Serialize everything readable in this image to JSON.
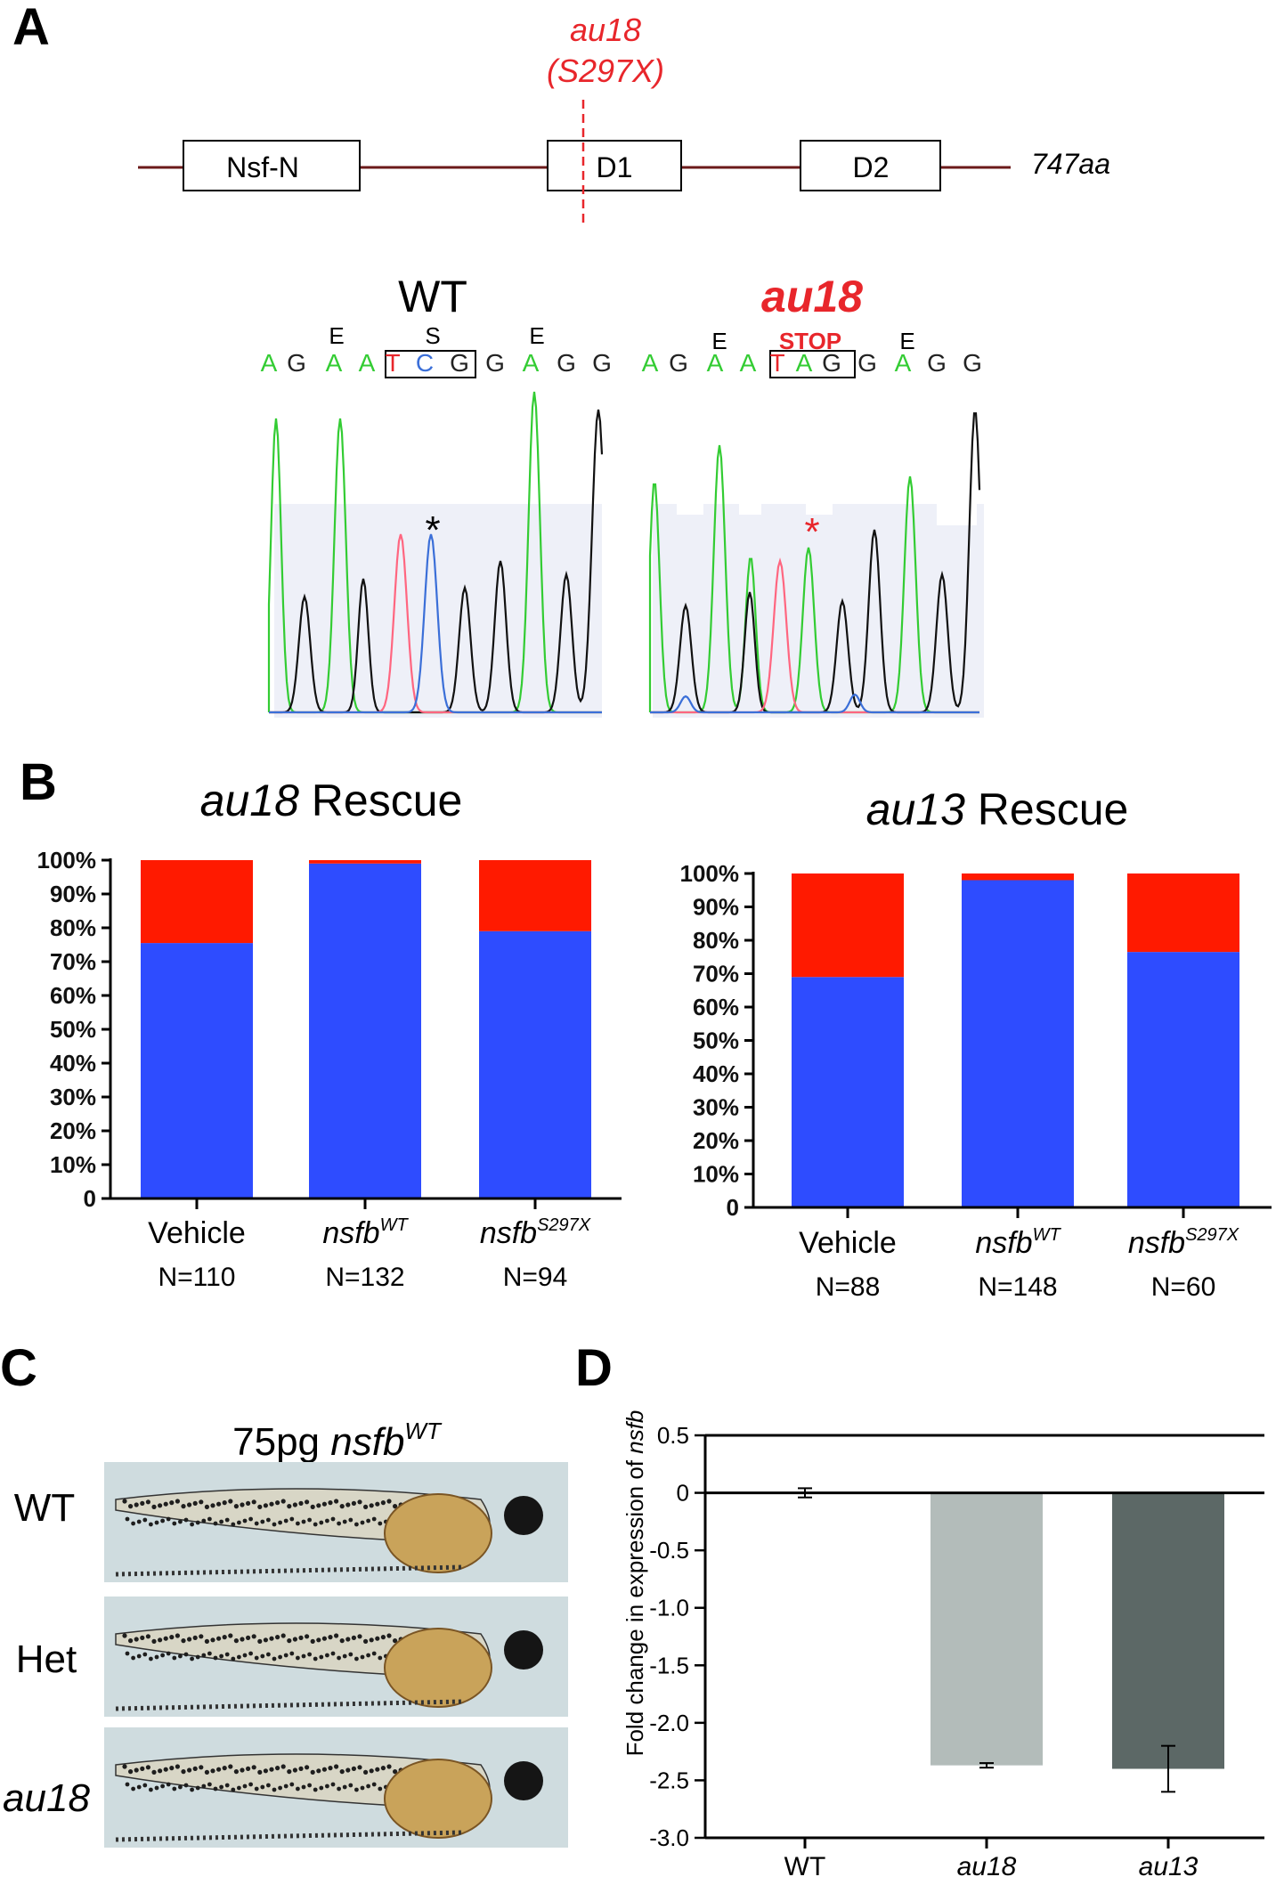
{
  "panel_labels": {
    "a": "A",
    "b": "B",
    "c": "C",
    "d": "D"
  },
  "colors": {
    "mutation_red": "#e8262b",
    "bar_blue": "#2e4cff",
    "bar_red": "#ff1a00",
    "bar_light_gray": "#b3bcba",
    "bar_dark_gray": "#5c6866",
    "trace_green": "#33cc33",
    "trace_black": "#111111",
    "trace_red": "#ff6680",
    "trace_blue": "#3b6fd8",
    "seq_bg": "#eef0f8"
  },
  "panel_a": {
    "mutation_label": "au18",
    "mutation_aa": "(S297X)",
    "domains": [
      "Nsf-N",
      "D1",
      "D2"
    ],
    "protein_length": "747aa",
    "wt": {
      "title": "WT",
      "codon_marks": [
        "E",
        "S",
        "E"
      ],
      "bases": [
        "A",
        "G",
        "A",
        "A",
        "T",
        "C",
        "G",
        "G",
        "A",
        "G",
        "G"
      ],
      "peak_marker": "*"
    },
    "mutant": {
      "title": "au18",
      "codon_marks": [
        "E",
        "STOP",
        "E"
      ],
      "bases": [
        "A",
        "G",
        "A",
        "A",
        "T",
        "A",
        "G",
        "G",
        "A",
        "G",
        "G"
      ],
      "peak_marker": "*"
    }
  },
  "chart_data": [
    {
      "type": "bar",
      "stacked": true,
      "title_italic": "au18",
      "title": "Rescue",
      "categories": [
        "Vehicle",
        "nsfb",
        "nsfb"
      ],
      "category_superscripts": [
        "",
        "WT",
        "S297X"
      ],
      "category_italic": [
        false,
        true,
        true
      ],
      "n_labels": [
        "N=110",
        "N=132",
        "N=94"
      ],
      "yticks": [
        "0",
        "10%",
        "20%",
        "30%",
        "40%",
        "50%",
        "60%",
        "70%",
        "80%",
        "90%",
        "100%"
      ],
      "ylim": [
        0,
        100
      ],
      "series": [
        {
          "color": "#2e4cff",
          "values": [
            75.5,
            99.0,
            79.0
          ]
        },
        {
          "color": "#ff1a00",
          "values": [
            24.5,
            1.0,
            21.0
          ]
        }
      ]
    },
    {
      "type": "bar",
      "stacked": true,
      "title_italic": "au13",
      "title": "Rescue",
      "categories": [
        "Vehicle",
        "nsfb",
        "nsfb"
      ],
      "category_superscripts": [
        "",
        "WT",
        "S297X"
      ],
      "category_italic": [
        false,
        true,
        true
      ],
      "n_labels": [
        "N=88",
        "N=148",
        "N=60"
      ],
      "yticks": [
        "0",
        "10%",
        "20%",
        "30%",
        "40%",
        "50%",
        "60%",
        "70%",
        "80%",
        "90%",
        "100%"
      ],
      "ylim": [
        0,
        100
      ],
      "series": [
        {
          "color": "#2e4cff",
          "values": [
            69.0,
            98.0,
            76.5
          ]
        },
        {
          "color": "#ff1a00",
          "values": [
            31.0,
            2.0,
            23.5
          ]
        }
      ]
    },
    {
      "type": "bar",
      "title": "",
      "ylabel_prefix": "Fold change in expression of ",
      "ylabel_italic": "nsfb",
      "categories": [
        "WT",
        "au18",
        "au13"
      ],
      "category_italic": [
        false,
        true,
        true
      ],
      "values": [
        0.0,
        -2.37,
        -2.4
      ],
      "errors": [
        0.04,
        0.02,
        0.2
      ],
      "colors": [
        "#ffffff",
        "#b3bcba",
        "#5c6866"
      ],
      "yticks": [
        "0.5",
        "0",
        "-0.5",
        "-1.0",
        "-1.5",
        "-2.0",
        "-2.5",
        "-3.0"
      ],
      "ylim": [
        -3.0,
        0.5
      ]
    }
  ],
  "panel_c": {
    "title": "75pg ",
    "title_italic": "nsfb",
    "title_superscript": "WT",
    "rows": [
      "WT",
      "Het",
      "au18"
    ],
    "row_italic": [
      false,
      false,
      true
    ]
  }
}
